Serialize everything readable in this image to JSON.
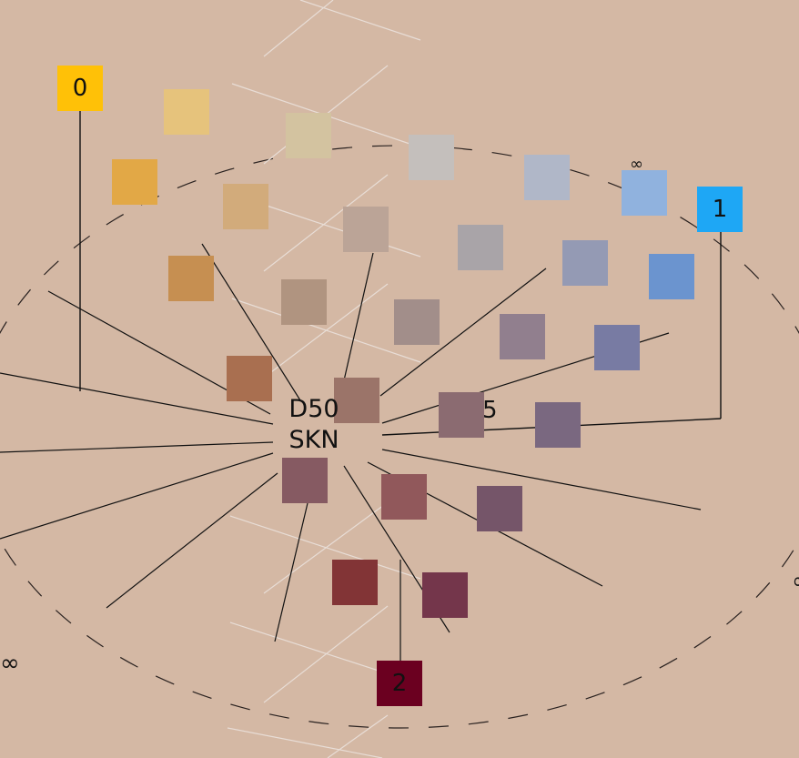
{
  "center": {
    "line1": "D50",
    "line2": "SKN",
    "side_mark": "5"
  },
  "edge_marks": {
    "left": "∞",
    "top": "∞",
    "right": "∞"
  },
  "key_patches": [
    {
      "label": "0",
      "color": "#ffc107"
    },
    {
      "label": "1",
      "color": "#1ea7f5"
    },
    {
      "label": "2",
      "color": "#6b0020"
    }
  ],
  "patch_colors": [
    "#e6c37c",
    "#e2a846",
    "#d3c3a0",
    "#d2ab7b",
    "#c68f51",
    "#c4bfbc",
    "#bba497",
    "#b09480",
    "#a96f50",
    "#b0b7c8",
    "#a9a4a8",
    "#a28e8a",
    "#9b7469",
    "#90b2de",
    "#949ab4",
    "#917f8e",
    "#8b6b71",
    "#91585b",
    "#6b94cf",
    "#787ba3",
    "#7a6880",
    "#865a62",
    "#823436",
    "#755569",
    "#74364b"
  ],
  "colors": {
    "background": "#d4b8a4",
    "ray": "#111111",
    "grid": "#e8ddd6",
    "ellipse": "#2a2220"
  }
}
